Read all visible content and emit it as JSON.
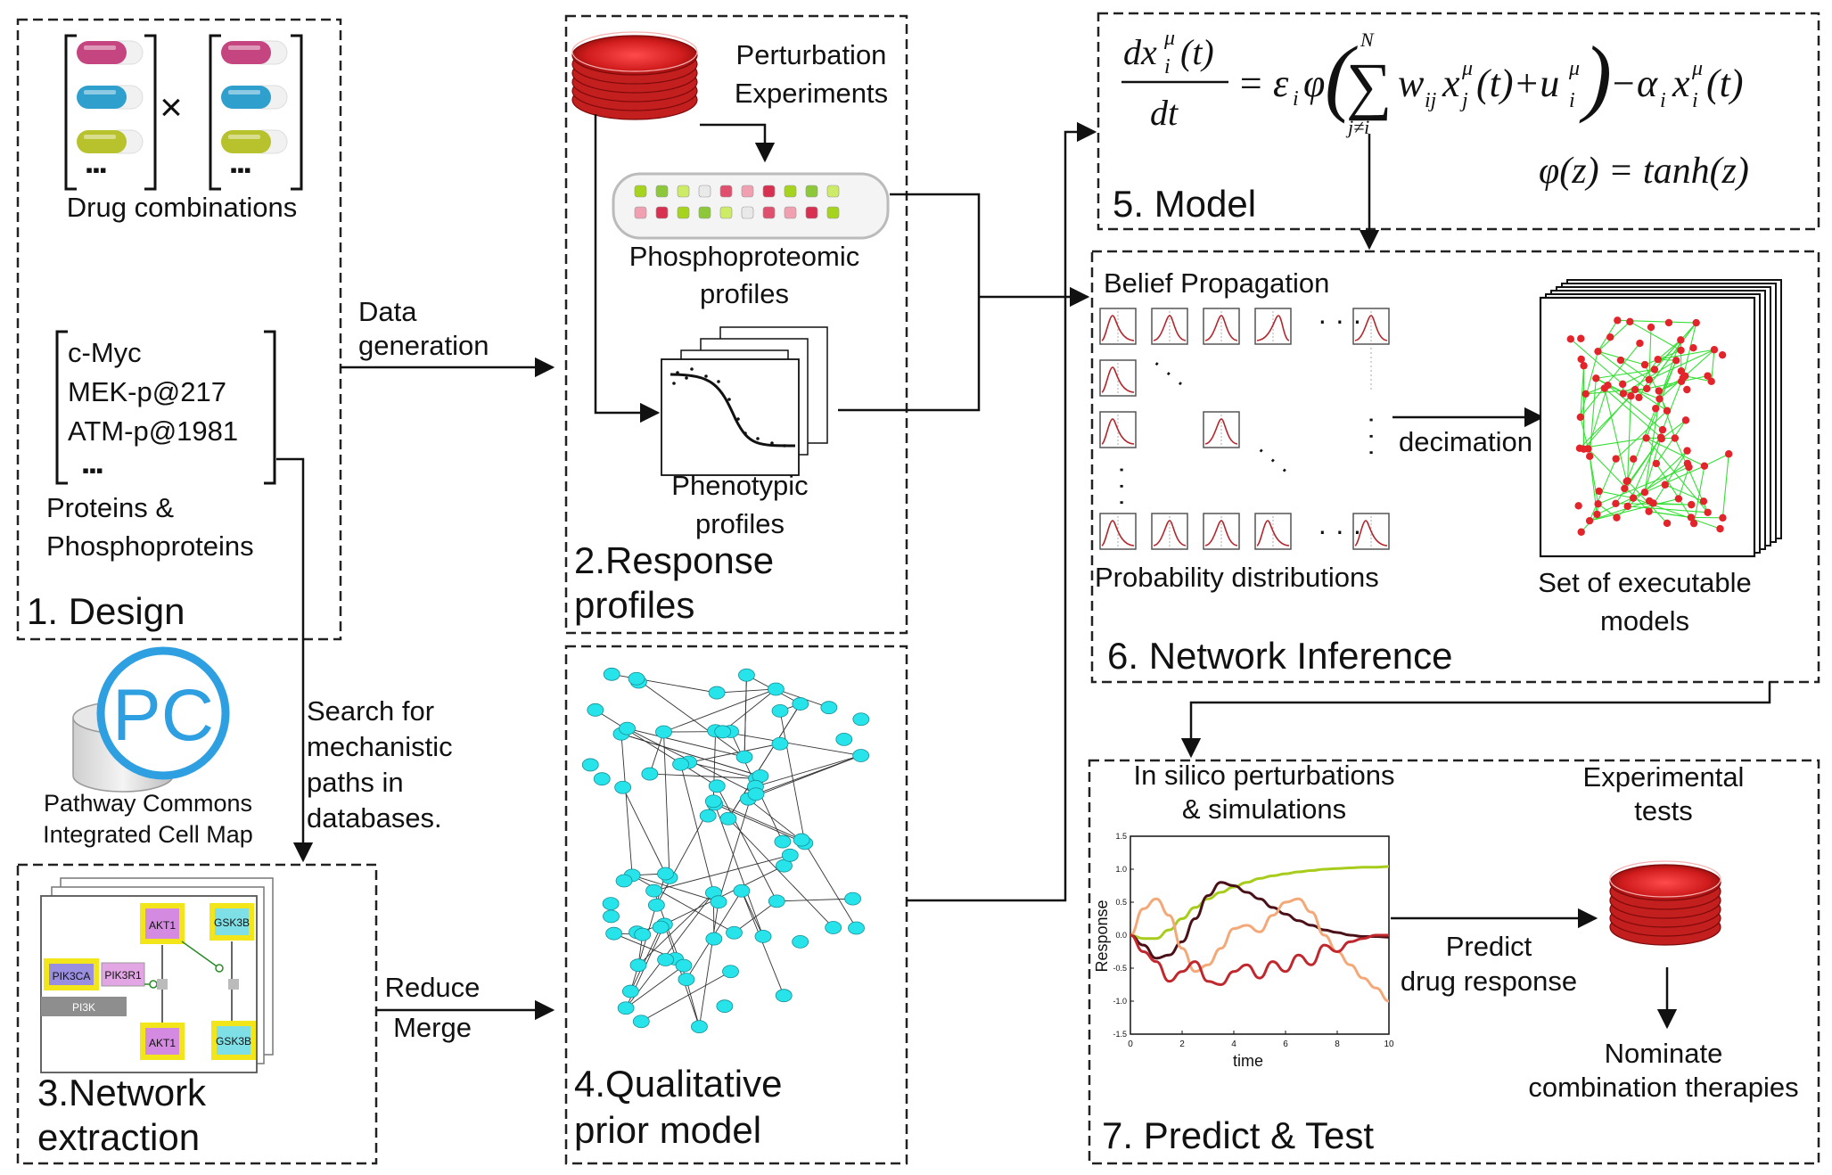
{
  "panels": {
    "design": {
      "title": "1. Design",
      "drug_caption": "Drug combinations",
      "times_symbol": "×",
      "proteins": [
        "c-Myc",
        "MEK-p@217",
        "ATM-p@1981"
      ],
      "proteins_ellipsis": "▪▪▪",
      "proteins_caption_1": "Proteins &",
      "proteins_caption_2": "Phosphoproteins",
      "pill_colors": [
        "#c4457f",
        "#2f9fcd",
        "#b7c22c"
      ]
    },
    "response": {
      "title_1": "2.Response",
      "title_2": "profiles",
      "perturbation_1": "Perturbation",
      "perturbation_2": "Experiments",
      "phospho_1": "Phosphoproteomic",
      "phospho_2": "profiles",
      "pheno_1": "Phenotypic",
      "pheno_2": "profiles"
    },
    "network_extraction": {
      "title_1": "3.Network",
      "title_2": "extraction",
      "nodes": [
        "PIK3CA",
        "PIK3R1",
        "PI3K",
        "AKT1",
        "GSK3B",
        "AKT1",
        "GSK3B"
      ]
    },
    "prior_model": {
      "title_1": "4.Qualitative",
      "title_2": "prior model",
      "node_color": "#27e3ea"
    },
    "model": {
      "title": "5. Model",
      "phi_equation": "φ(z) = tanh(z)"
    },
    "inference": {
      "title": "6. Network Inference",
      "belief": "Belief Propagation",
      "probability": "Probability distributions",
      "decimation": "decimation",
      "executable_1": "Set of executable",
      "executable_2": "models",
      "node_color": "#e3242b",
      "edge_color": "#35e035"
    },
    "predict": {
      "title": "7. Predict & Test",
      "in_silico_1": "In silico perturbations",
      "in_silico_2": "& simulations",
      "experimental_1": "Experimental",
      "experimental_2": "tests",
      "predict_1": "Predict",
      "predict_2": "drug response",
      "nominate_1": "Nominate",
      "nominate_2": "combination therapies"
    }
  },
  "pathway": {
    "logo_text": "PC",
    "line_1": "Pathway Commons",
    "line_2": "Integrated Cell Map"
  },
  "arrows": {
    "data_1": "Data",
    "data_2": "generation",
    "search_1": "Search for",
    "search_2": "mechanistic",
    "search_3": "paths in",
    "search_4": "databases.",
    "reduce": "Reduce",
    "merge": "Merge"
  },
  "chart_data": {
    "type": "line",
    "xlabel": "time",
    "ylabel": "Response",
    "xlim": [
      0,
      10
    ],
    "ylim": [
      -1.5,
      1.5
    ],
    "x_ticks": [
      "0",
      "2",
      "4",
      "6",
      "8",
      "10"
    ],
    "y_ticks": [
      "1.5",
      "1.0",
      "0.5",
      "0.0",
      "-0.5",
      "-1.0",
      "-1.5"
    ],
    "x": [
      0,
      0.5,
      1,
      1.5,
      2,
      2.5,
      3,
      3.5,
      4,
      4.5,
      5,
      5.5,
      6,
      6.5,
      7,
      7.5,
      8,
      8.5,
      9,
      9.5,
      10
    ],
    "series": [
      {
        "color": "#a8cc1c",
        "values": [
          0,
          -0.05,
          -0.05,
          0.08,
          0.25,
          0.42,
          0.55,
          0.65,
          0.73,
          0.8,
          0.86,
          0.9,
          0.93,
          0.96,
          0.98,
          1.0,
          1.01,
          1.02,
          1.03,
          1.03,
          1.04
        ]
      },
      {
        "color": "#4a1218",
        "values": [
          0,
          -0.15,
          -0.35,
          -0.3,
          -0.1,
          0.25,
          0.6,
          0.8,
          0.75,
          0.65,
          0.55,
          0.42,
          0.32,
          0.22,
          0.15,
          0.08,
          0.04,
          0.0,
          -0.02,
          -0.02,
          -0.03
        ]
      },
      {
        "color": "#f4a878",
        "values": [
          0,
          0.4,
          0.55,
          0.3,
          -0.2,
          -0.55,
          -0.45,
          -0.2,
          0.1,
          0.15,
          0.05,
          0.3,
          0.5,
          0.55,
          0.35,
          0.0,
          -0.25,
          -0.45,
          -0.65,
          -0.8,
          -1.0
        ]
      },
      {
        "color": "#c0282e",
        "values": [
          0,
          -0.25,
          -0.4,
          -0.7,
          -0.55,
          -0.4,
          -0.7,
          -0.75,
          -0.55,
          -0.45,
          -0.65,
          -0.4,
          -0.55,
          -0.3,
          -0.45,
          -0.15,
          -0.25,
          -0.1,
          -0.05,
          0.0,
          0.0
        ]
      }
    ]
  }
}
